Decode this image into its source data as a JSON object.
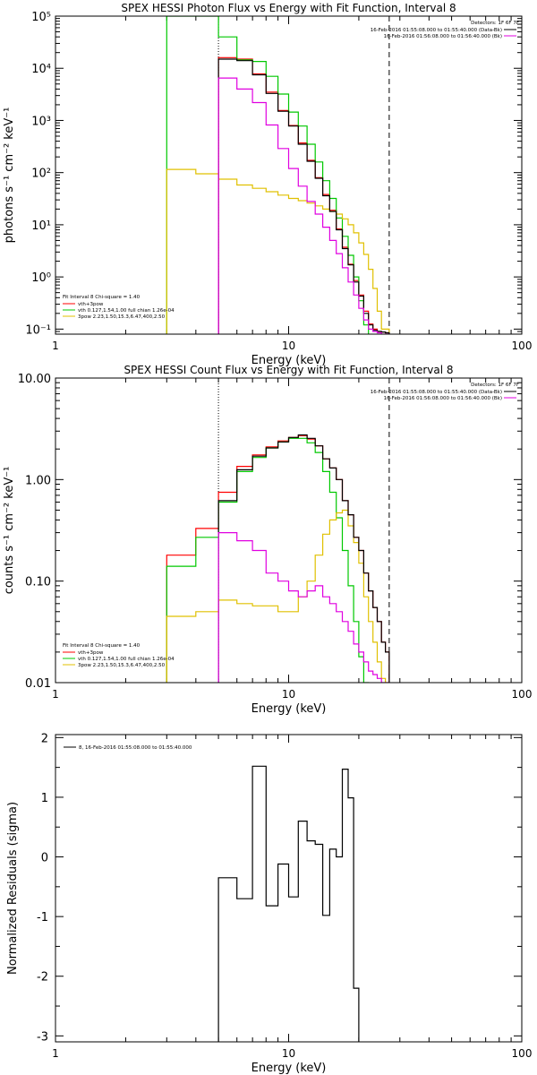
{
  "colors": {
    "vth_plus_3pow": "#ff0000",
    "vth": "#00c800",
    "3pow": "#e0c000",
    "data": "#000000",
    "background": "#e000e0",
    "frame": "#000000"
  },
  "chart_data": [
    {
      "type": "line",
      "title": "SPEX HESSI Photon Flux vs Energy with Fit Function, Interval 8",
      "xlabel": "Energy (keV)",
      "ylabel": "photons s⁻¹ cm⁻² keV⁻¹",
      "xscale": "log",
      "yscale": "log",
      "xlim": [
        1,
        100
      ],
      "ylim": [
        0.08,
        100000
      ],
      "x_ticks": [
        "1",
        "10",
        "100"
      ],
      "y_ticks": [
        "10⁻¹",
        "10⁰",
        "10¹",
        "10²",
        "10³",
        "10⁴",
        "10⁵"
      ],
      "detectors_label": "Detectors: 1F 6F 7F",
      "header_lines": [
        "16-Feb-2016 01:55:08.000 to 01:55:40.000 (Data-Bk)",
        "16-Feb-2016 01:56:08.000 to 01:56:40.000 (Bk)"
      ],
      "legend_title": "Fit Interval 8   Chi-square = 1.40",
      "legend": [
        "vth+3pow",
        "vth 0.127,1.54,1.00  full chian 1.26e-04",
        "3pow 2.23,1.50,15.3,6.47,400,2.50"
      ],
      "vlines_keV": [
        5.0,
        27.0
      ],
      "edges_keV": [
        3,
        4,
        5,
        6,
        7,
        8,
        9,
        10,
        11,
        12,
        13,
        14,
        15,
        16,
        17,
        18,
        19,
        20,
        21,
        22,
        23,
        24,
        25,
        26,
        27,
        28
      ],
      "series": [
        {
          "name": "vth+3pow",
          "color": "#ff0000",
          "start_keV": 5,
          "values": [
            16000,
            15000,
            7800,
            3500,
            1550,
            800,
            370,
            172,
            80,
            38,
            19,
            8.3,
            3.7,
            1.75,
            0.85,
            0.45,
            0.22,
            0.125,
            0.1,
            0.09,
            0.088,
            0.085
          ]
        },
        {
          "name": "vth",
          "color": "#00c800",
          "start_keV": 3,
          "values": [
            100000,
            100000,
            40000,
            14500,
            13500,
            7000,
            3200,
            1450,
            780,
            350,
            160,
            70,
            32,
            13.5,
            6,
            2.6,
            1.0,
            0.35,
            0.12,
            0.07,
            0.06,
            0.06,
            0.06,
            0.06
          ]
        },
        {
          "name": "3pow",
          "color": "#e0c000",
          "start_keV": 3,
          "values": [
            115,
            95,
            75,
            58,
            50,
            43,
            37,
            32,
            29,
            26,
            23,
            20,
            18,
            16,
            13,
            10,
            7,
            4.5,
            2.7,
            1.4,
            0.6,
            0.22,
            0.1,
            0.1
          ]
        },
        {
          "name": "data",
          "color": "#000000",
          "start_keV": 5,
          "values": [
            15000,
            14000,
            7500,
            3300,
            1500,
            780,
            350,
            165,
            78,
            36,
            18,
            8,
            3.5,
            1.7,
            0.8,
            0.43,
            0.2,
            0.12,
            0.095,
            0.09,
            0.088,
            0.085
          ]
        },
        {
          "name": "background",
          "color": "#e000e0",
          "start_keV": 5,
          "values": [
            6500,
            4000,
            2200,
            820,
            290,
            120,
            55,
            28,
            16,
            9,
            5,
            2.8,
            1.5,
            0.8,
            0.45,
            0.25,
            0.15,
            0.1,
            0.09,
            0.085,
            0.08,
            0.08
          ]
        }
      ]
    },
    {
      "type": "line",
      "title": "SPEX HESSI Count Flux vs Energy with Fit Function, Interval 8",
      "xlabel": "Energy (keV)",
      "ylabel": "counts s⁻¹ cm⁻² keV⁻¹",
      "xscale": "log",
      "yscale": "log",
      "xlim": [
        1,
        100
      ],
      "ylim": [
        0.01,
        10
      ],
      "x_ticks": [
        "1",
        "10",
        "100"
      ],
      "y_ticks": [
        "0.01",
        "0.10",
        "1.00",
        "10.00"
      ],
      "detectors_label": "Detectors: 1F 6F 7F",
      "header_lines": [
        "16-Feb-2016 01:55:08.000 to 01:55:40.000 (Data-Bk)",
        "16-Feb-2016 01:56:08.000 to 01:56:40.000 (Bk)"
      ],
      "legend_title": "Fit Interval 8   Chi-square = 1.40",
      "legend": [
        "vth+3pow",
        "vth 0.127,1.54,1.00  full chian 1.26e-04",
        "3pow 2.23,1.50,15.3,6.47,400,2.50"
      ],
      "vlines_keV": [
        5.0,
        27.0
      ],
      "edges_keV": [
        3,
        4,
        5,
        6,
        7,
        8,
        9,
        10,
        11,
        12,
        13,
        14,
        15,
        16,
        17,
        18,
        19,
        20,
        21,
        22,
        23,
        24,
        25,
        26,
        27,
        28
      ],
      "series": [
        {
          "name": "vth+3pow",
          "color": "#ff0000",
          "start_keV": 3,
          "values": [
            0.18,
            0.33,
            0.75,
            1.35,
            1.75,
            2.1,
            2.4,
            2.6,
            2.7,
            2.5,
            2.15,
            1.6,
            1.3,
            1.0,
            0.62,
            0.45,
            0.27,
            0.2,
            0.12,
            0.08,
            0.055,
            0.04,
            0.025,
            0.02
          ]
        },
        {
          "name": "vth",
          "color": "#00c800",
          "start_keV": 3,
          "values": [
            0.14,
            0.27,
            0.6,
            1.2,
            1.65,
            2.05,
            2.35,
            2.55,
            2.55,
            2.3,
            1.85,
            1.2,
            0.75,
            0.42,
            0.2,
            0.09,
            0.04,
            0.018,
            0.01,
            0.009,
            0.009,
            0.009,
            0.009,
            0.009
          ]
        },
        {
          "name": "3pow",
          "color": "#e0c000",
          "start_keV": 3,
          "values": [
            0.045,
            0.05,
            0.065,
            0.06,
            0.057,
            0.057,
            0.05,
            0.05,
            0.07,
            0.1,
            0.18,
            0.29,
            0.4,
            0.47,
            0.5,
            0.35,
            0.24,
            0.15,
            0.07,
            0.04,
            0.025,
            0.016,
            0.011,
            0.01
          ]
        },
        {
          "name": "data",
          "color": "#000000",
          "start_keV": 5,
          "values": [
            0.62,
            1.25,
            1.7,
            2.05,
            2.35,
            2.6,
            2.75,
            2.55,
            2.15,
            1.6,
            1.3,
            1.0,
            0.62,
            0.45,
            0.27,
            0.2,
            0.12,
            0.08,
            0.055,
            0.04,
            0.025,
            0.02
          ]
        },
        {
          "name": "background",
          "color": "#e000e0",
          "start_keV": 5,
          "values": [
            0.3,
            0.25,
            0.2,
            0.12,
            0.1,
            0.08,
            0.07,
            0.08,
            0.09,
            0.07,
            0.06,
            0.05,
            0.04,
            0.032,
            0.024,
            0.02,
            0.016,
            0.013,
            0.012,
            0.011,
            0.01,
            0.01
          ]
        }
      ]
    },
    {
      "type": "line",
      "xlabel": "Energy (keV)",
      "ylabel": "Normalized Residuals (sigma)",
      "xscale": "log",
      "yscale": "linear",
      "xlim": [
        1,
        100
      ],
      "ylim": [
        -3.1,
        2.05
      ],
      "x_ticks": [
        "1",
        "10",
        "100"
      ],
      "y_ticks": [
        "-3",
        "-2",
        "-1",
        "0",
        "1",
        "2"
      ],
      "legend": [
        "8, 16-Feb-2016 01:55:08.000 to 01:55:40.000"
      ],
      "edges_keV": [
        5,
        6,
        7,
        8,
        9,
        10,
        11,
        12,
        13,
        14,
        15,
        16,
        17,
        18,
        19,
        20,
        21,
        22,
        23,
        24,
        25,
        26,
        27
      ],
      "series": [
        {
          "name": "data",
          "color": "#000000",
          "start_keV": 5,
          "values": [
            -0.35,
            -0.7,
            1.52,
            -0.82,
            -0.12,
            -0.67,
            0.6,
            0.27,
            0.21,
            -0.98,
            0.13,
            0.0,
            1.47,
            0.99,
            -2.2
          ]
        }
      ]
    }
  ]
}
